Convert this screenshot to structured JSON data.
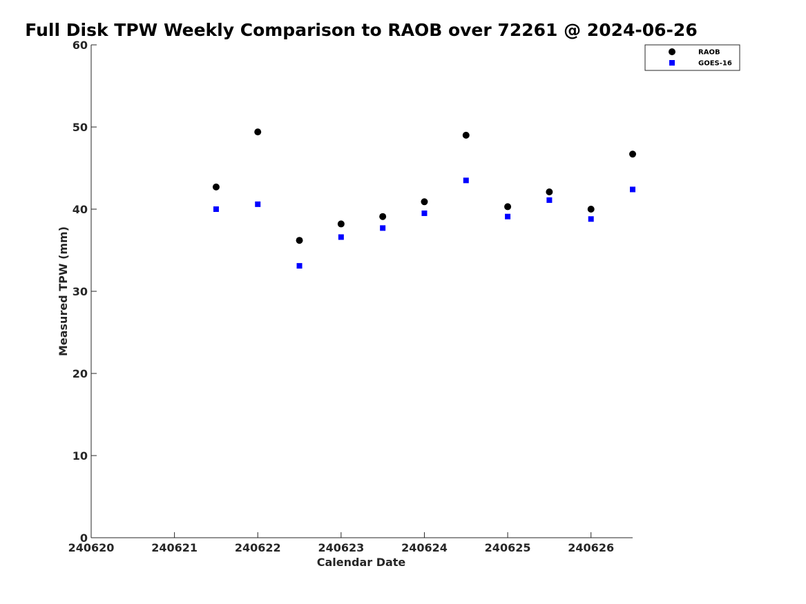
{
  "chart_data": {
    "type": "scatter",
    "title": "Full Disk TPW Weekly Comparison to RAOB over 72261 @ 2024-06-26",
    "xlabel": "Calendar Date",
    "ylabel": "Measured TPW (mm)",
    "xlim": [
      240620,
      240626.5
    ],
    "ylim": [
      0,
      60
    ],
    "x_ticks": [
      240620,
      240621,
      240622,
      240623,
      240624,
      240625,
      240626
    ],
    "x_tick_labels": [
      "240620",
      "240621",
      "240622",
      "240623",
      "240624",
      "240625",
      "240626"
    ],
    "y_ticks": [
      0,
      10,
      20,
      30,
      40,
      50,
      60
    ],
    "y_tick_labels": [
      "0",
      "10",
      "20",
      "30",
      "40",
      "50",
      "60"
    ],
    "grid": false,
    "legend_position": "top-right",
    "series": [
      {
        "name": "RAOB",
        "marker": "circle",
        "color": "#000000",
        "x": [
          240621.5,
          240622,
          240622.5,
          240623,
          240623.5,
          240624,
          240624.5,
          240625,
          240625.5,
          240626,
          240626.5
        ],
        "y": [
          42.7,
          49.4,
          36.2,
          38.2,
          39.1,
          40.9,
          49.0,
          40.3,
          42.1,
          40.0,
          46.7
        ]
      },
      {
        "name": "GOES-16",
        "marker": "square",
        "color": "#0000ff",
        "x": [
          240621.5,
          240622,
          240622.5,
          240623,
          240623.5,
          240624,
          240624.5,
          240625,
          240625.5,
          240626,
          240626.5
        ],
        "y": [
          40.0,
          40.6,
          33.1,
          36.6,
          37.7,
          39.5,
          43.5,
          39.1,
          41.1,
          38.8,
          42.4
        ]
      }
    ]
  }
}
